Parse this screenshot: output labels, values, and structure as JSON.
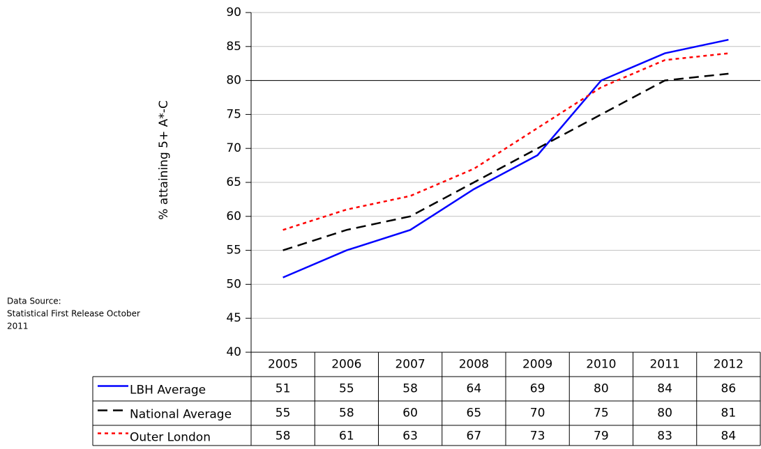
{
  "chart_data": {
    "type": "line",
    "y_label": "% attaining 5+ A*-C",
    "source": [
      "Data Source:",
      "Statistical First Release October",
      "2011"
    ],
    "categories": [
      "2005",
      "2006",
      "2007",
      "2008",
      "2009",
      "2010",
      "2011",
      "2012"
    ],
    "series": [
      {
        "name": "LBH Average",
        "color": "#0000ff",
        "style": "solid",
        "values": [
          51,
          55,
          58,
          64,
          69,
          80,
          84,
          86
        ]
      },
      {
        "name": "National Average",
        "color": "#000000",
        "style": "dashed",
        "values": [
          55,
          58,
          60,
          65,
          70,
          75,
          80,
          81
        ]
      },
      {
        "name": "Outer London",
        "color": "#ff0000",
        "style": "dotted",
        "values": [
          58,
          61,
          63,
          67,
          73,
          79,
          83,
          84
        ]
      }
    ],
    "ylim": [
      40,
      90
    ],
    "yticks": [
      40,
      45,
      50,
      55,
      60,
      65,
      70,
      75,
      80,
      85,
      90
    ],
    "grid": true,
    "reference_line": 80
  }
}
